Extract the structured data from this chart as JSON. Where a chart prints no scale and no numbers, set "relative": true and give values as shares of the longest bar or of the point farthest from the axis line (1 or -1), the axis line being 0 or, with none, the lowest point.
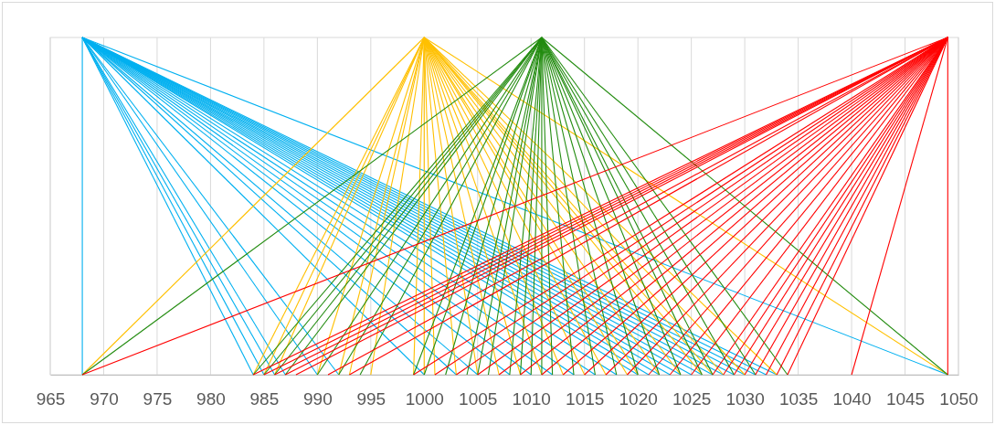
{
  "chart_data": {
    "type": "line",
    "relative": true,
    "xlim": [
      965,
      1050
    ],
    "xticks": [
      965,
      970,
      975,
      980,
      985,
      990,
      995,
      1000,
      1005,
      1010,
      1015,
      1020,
      1025,
      1030,
      1035,
      1040,
      1045,
      1050
    ],
    "grid": "x",
    "tick_labels": "x",
    "line_style": "solid",
    "marker": "none",
    "series": [
      {
        "color": "#00b0f0",
        "x": [
          968,
          968
        ],
        "values": [
          1,
          0
        ]
      },
      {
        "color": "#00b0f0",
        "x": [
          968,
          984
        ],
        "values": [
          1,
          0
        ]
      },
      {
        "color": "#00b0f0",
        "x": [
          968,
          985
        ],
        "values": [
          1,
          0
        ]
      },
      {
        "color": "#00b0f0",
        "x": [
          968,
          986
        ],
        "values": [
          1,
          0
        ]
      },
      {
        "color": "#00b0f0",
        "x": [
          968,
          987
        ],
        "values": [
          1,
          0
        ]
      },
      {
        "color": "#00b0f0",
        "x": [
          968,
          990
        ],
        "values": [
          1,
          0
        ]
      },
      {
        "color": "#00b0f0",
        "x": [
          968,
          992
        ],
        "values": [
          1,
          0
        ]
      },
      {
        "color": "#00b0f0",
        "x": [
          968,
          1000
        ],
        "values": [
          1,
          0
        ]
      },
      {
        "color": "#00b0f0",
        "x": [
          968,
          1003
        ],
        "values": [
          1,
          0
        ]
      },
      {
        "color": "#00b0f0",
        "x": [
          968,
          1005
        ],
        "values": [
          1,
          0
        ]
      },
      {
        "color": "#00b0f0",
        "x": [
          968,
          1008
        ],
        "values": [
          1,
          0
        ]
      },
      {
        "color": "#00b0f0",
        "x": [
          968,
          1010
        ],
        "values": [
          1,
          0
        ]
      },
      {
        "color": "#00b0f0",
        "x": [
          968,
          1012
        ],
        "values": [
          1,
          0
        ]
      },
      {
        "color": "#00b0f0",
        "x": [
          968,
          1014
        ],
        "values": [
          1,
          0
        ]
      },
      {
        "color": "#00b0f0",
        "x": [
          968,
          1016
        ],
        "values": [
          1,
          0
        ]
      },
      {
        "color": "#00b0f0",
        "x": [
          968,
          1018
        ],
        "values": [
          1,
          0
        ]
      },
      {
        "color": "#00b0f0",
        "x": [
          968,
          1020
        ],
        "values": [
          1,
          0
        ]
      },
      {
        "color": "#00b0f0",
        "x": [
          968,
          1021
        ],
        "values": [
          1,
          0
        ]
      },
      {
        "color": "#00b0f0",
        "x": [
          968,
          1022
        ],
        "values": [
          1,
          0
        ]
      },
      {
        "color": "#00b0f0",
        "x": [
          968,
          1023
        ],
        "values": [
          1,
          0
        ]
      },
      {
        "color": "#00b0f0",
        "x": [
          968,
          1024
        ],
        "values": [
          1,
          0
        ]
      },
      {
        "color": "#00b0f0",
        "x": [
          968,
          1025
        ],
        "values": [
          1,
          0
        ]
      },
      {
        "color": "#00b0f0",
        "x": [
          968,
          1026
        ],
        "values": [
          1,
          0
        ]
      },
      {
        "color": "#00b0f0",
        "x": [
          968,
          1027
        ],
        "values": [
          1,
          0
        ]
      },
      {
        "color": "#00b0f0",
        "x": [
          968,
          1028
        ],
        "values": [
          1,
          0
        ]
      },
      {
        "color": "#00b0f0",
        "x": [
          968,
          1029
        ],
        "values": [
          1,
          0
        ]
      },
      {
        "color": "#00b0f0",
        "x": [
          968,
          1030
        ],
        "values": [
          1,
          0
        ]
      },
      {
        "color": "#00b0f0",
        "x": [
          968,
          1031
        ],
        "values": [
          1,
          0
        ]
      },
      {
        "color": "#00b0f0",
        "x": [
          968,
          1032
        ],
        "values": [
          1,
          0
        ]
      },
      {
        "color": "#00b0f0",
        "x": [
          968,
          1033
        ],
        "values": [
          1,
          0
        ]
      },
      {
        "color": "#00b0f0",
        "x": [
          968,
          1049
        ],
        "values": [
          1,
          0
        ]
      },
      {
        "color": "#ffc000",
        "x": [
          1000,
          968
        ],
        "values": [
          1,
          0
        ]
      },
      {
        "color": "#ffc000",
        "x": [
          1000,
          984
        ],
        "values": [
          1,
          0
        ]
      },
      {
        "color": "#ffc000",
        "x": [
          1000,
          985
        ],
        "values": [
          1,
          0
        ]
      },
      {
        "color": "#ffc000",
        "x": [
          1000,
          986
        ],
        "values": [
          1,
          0
        ]
      },
      {
        "color": "#ffc000",
        "x": [
          1000,
          990
        ],
        "values": [
          1,
          0
        ]
      },
      {
        "color": "#ffc000",
        "x": [
          1000,
          992
        ],
        "values": [
          1,
          0
        ]
      },
      {
        "color": "#ffc000",
        "x": [
          1000,
          993
        ],
        "values": [
          1,
          0
        ]
      },
      {
        "color": "#ffc000",
        "x": [
          1000,
          995
        ],
        "values": [
          1,
          0
        ]
      },
      {
        "color": "#ffc000",
        "x": [
          1000,
          999
        ],
        "values": [
          1,
          0
        ]
      },
      {
        "color": "#ffc000",
        "x": [
          1000,
          1000
        ],
        "values": [
          1,
          0
        ]
      },
      {
        "color": "#ffc000",
        "x": [
          1000,
          1001
        ],
        "values": [
          1,
          0
        ]
      },
      {
        "color": "#ffc000",
        "x": [
          1000,
          1003
        ],
        "values": [
          1,
          0
        ]
      },
      {
        "color": "#ffc000",
        "x": [
          1000,
          1005
        ],
        "values": [
          1,
          0
        ]
      },
      {
        "color": "#ffc000",
        "x": [
          1000,
          1007
        ],
        "values": [
          1,
          0
        ]
      },
      {
        "color": "#ffc000",
        "x": [
          1000,
          1009
        ],
        "values": [
          1,
          0
        ]
      },
      {
        "color": "#ffc000",
        "x": [
          1000,
          1011
        ],
        "values": [
          1,
          0
        ]
      },
      {
        "color": "#ffc000",
        "x": [
          1000,
          1013
        ],
        "values": [
          1,
          0
        ]
      },
      {
        "color": "#ffc000",
        "x": [
          1000,
          1015
        ],
        "values": [
          1,
          0
        ]
      },
      {
        "color": "#ffc000",
        "x": [
          1000,
          1017
        ],
        "values": [
          1,
          0
        ]
      },
      {
        "color": "#ffc000",
        "x": [
          1000,
          1019
        ],
        "values": [
          1,
          0
        ]
      },
      {
        "color": "#ffc000",
        "x": [
          1000,
          1020
        ],
        "values": [
          1,
          0
        ]
      },
      {
        "color": "#ffc000",
        "x": [
          1000,
          1022
        ],
        "values": [
          1,
          0
        ]
      },
      {
        "color": "#ffc000",
        "x": [
          1000,
          1024
        ],
        "values": [
          1,
          0
        ]
      },
      {
        "color": "#ffc000",
        "x": [
          1000,
          1026
        ],
        "values": [
          1,
          0
        ]
      },
      {
        "color": "#ffc000",
        "x": [
          1000,
          1027
        ],
        "values": [
          1,
          0
        ]
      },
      {
        "color": "#ffc000",
        "x": [
          1000,
          1028
        ],
        "values": [
          1,
          0
        ]
      },
      {
        "color": "#ffc000",
        "x": [
          1000,
          1030
        ],
        "values": [
          1,
          0
        ]
      },
      {
        "color": "#ffc000",
        "x": [
          1000,
          1033
        ],
        "values": [
          1,
          0
        ]
      },
      {
        "color": "#ffc000",
        "x": [
          1000,
          1049
        ],
        "values": [
          1,
          0
        ]
      },
      {
        "color": "#238c10",
        "x": [
          1011,
          968
        ],
        "values": [
          1,
          0
        ]
      },
      {
        "color": "#238c10",
        "x": [
          1011,
          984
        ],
        "values": [
          1,
          0
        ]
      },
      {
        "color": "#238c10",
        "x": [
          1011,
          985
        ],
        "values": [
          1,
          0
        ]
      },
      {
        "color": "#238c10",
        "x": [
          1011,
          986
        ],
        "values": [
          1,
          0
        ]
      },
      {
        "color": "#238c10",
        "x": [
          1011,
          987
        ],
        "values": [
          1,
          0
        ]
      },
      {
        "color": "#238c10",
        "x": [
          1011,
          990
        ],
        "values": [
          1,
          0
        ]
      },
      {
        "color": "#238c10",
        "x": [
          1011,
          992
        ],
        "values": [
          1,
          0
        ]
      },
      {
        "color": "#238c10",
        "x": [
          1011,
          994
        ],
        "values": [
          1,
          0
        ]
      },
      {
        "color": "#238c10",
        "x": [
          1011,
          999
        ],
        "values": [
          1,
          0
        ]
      },
      {
        "color": "#238c10",
        "x": [
          1011,
          1000
        ],
        "values": [
          1,
          0
        ]
      },
      {
        "color": "#238c10",
        "x": [
          1011,
          1002
        ],
        "values": [
          1,
          0
        ]
      },
      {
        "color": "#238c10",
        "x": [
          1011,
          1004
        ],
        "values": [
          1,
          0
        ]
      },
      {
        "color": "#238c10",
        "x": [
          1011,
          1005
        ],
        "values": [
          1,
          0
        ]
      },
      {
        "color": "#238c10",
        "x": [
          1011,
          1006
        ],
        "values": [
          1,
          0
        ]
      },
      {
        "color": "#238c10",
        "x": [
          1011,
          1008
        ],
        "values": [
          1,
          0
        ]
      },
      {
        "color": "#238c10",
        "x": [
          1011,
          1009
        ],
        "values": [
          1,
          0
        ]
      },
      {
        "color": "#238c10",
        "x": [
          1011,
          1010
        ],
        "values": [
          1,
          0
        ]
      },
      {
        "color": "#238c10",
        "x": [
          1011,
          1011
        ],
        "values": [
          1,
          0
        ]
      },
      {
        "color": "#238c10",
        "x": [
          1011,
          1012
        ],
        "values": [
          1,
          0
        ]
      },
      {
        "color": "#238c10",
        "x": [
          1011,
          1014
        ],
        "values": [
          1,
          0
        ]
      },
      {
        "color": "#238c10",
        "x": [
          1011,
          1016
        ],
        "values": [
          1,
          0
        ]
      },
      {
        "color": "#238c10",
        "x": [
          1011,
          1018
        ],
        "values": [
          1,
          0
        ]
      },
      {
        "color": "#238c10",
        "x": [
          1011,
          1020
        ],
        "values": [
          1,
          0
        ]
      },
      {
        "color": "#238c10",
        "x": [
          1011,
          1022
        ],
        "values": [
          1,
          0
        ]
      },
      {
        "color": "#238c10",
        "x": [
          1011,
          1024
        ],
        "values": [
          1,
          0
        ]
      },
      {
        "color": "#238c10",
        "x": [
          1011,
          1026
        ],
        "values": [
          1,
          0
        ]
      },
      {
        "color": "#238c10",
        "x": [
          1011,
          1027
        ],
        "values": [
          1,
          0
        ]
      },
      {
        "color": "#238c10",
        "x": [
          1011,
          1029
        ],
        "values": [
          1,
          0
        ]
      },
      {
        "color": "#238c10",
        "x": [
          1011,
          1031
        ],
        "values": [
          1,
          0
        ]
      },
      {
        "color": "#238c10",
        "x": [
          1011,
          1034
        ],
        "values": [
          1,
          0
        ]
      },
      {
        "color": "#238c10",
        "x": [
          1011,
          1049
        ],
        "values": [
          1,
          0
        ]
      },
      {
        "color": "#ff0000",
        "x": [
          1049,
          968
        ],
        "values": [
          1,
          0
        ]
      },
      {
        "color": "#ff0000",
        "x": [
          1049,
          984
        ],
        "values": [
          1,
          0
        ]
      },
      {
        "color": "#ff0000",
        "x": [
          1049,
          985
        ],
        "values": [
          1,
          0
        ]
      },
      {
        "color": "#ff0000",
        "x": [
          1049,
          986
        ],
        "values": [
          1,
          0
        ]
      },
      {
        "color": "#ff0000",
        "x": [
          1049,
          987
        ],
        "values": [
          1,
          0
        ]
      },
      {
        "color": "#ff0000",
        "x": [
          1049,
          988
        ],
        "values": [
          1,
          0
        ]
      },
      {
        "color": "#ff0000",
        "x": [
          1049,
          991
        ],
        "values": [
          1,
          0
        ]
      },
      {
        "color": "#ff0000",
        "x": [
          1049,
          993
        ],
        "values": [
          1,
          0
        ]
      },
      {
        "color": "#ff0000",
        "x": [
          1049,
          999
        ],
        "values": [
          1,
          0
        ]
      },
      {
        "color": "#ff0000",
        "x": [
          1049,
          1001
        ],
        "values": [
          1,
          0
        ]
      },
      {
        "color": "#ff0000",
        "x": [
          1049,
          1003
        ],
        "values": [
          1,
          0
        ]
      },
      {
        "color": "#ff0000",
        "x": [
          1049,
          1005
        ],
        "values": [
          1,
          0
        ]
      },
      {
        "color": "#ff0000",
        "x": [
          1049,
          1007
        ],
        "values": [
          1,
          0
        ]
      },
      {
        "color": "#ff0000",
        "x": [
          1049,
          1009
        ],
        "values": [
          1,
          0
        ]
      },
      {
        "color": "#ff0000",
        "x": [
          1049,
          1011
        ],
        "values": [
          1,
          0
        ]
      },
      {
        "color": "#ff0000",
        "x": [
          1049,
          1013
        ],
        "values": [
          1,
          0
        ]
      },
      {
        "color": "#ff0000",
        "x": [
          1049,
          1015
        ],
        "values": [
          1,
          0
        ]
      },
      {
        "color": "#ff0000",
        "x": [
          1049,
          1017
        ],
        "values": [
          1,
          0
        ]
      },
      {
        "color": "#ff0000",
        "x": [
          1049,
          1019
        ],
        "values": [
          1,
          0
        ]
      },
      {
        "color": "#ff0000",
        "x": [
          1049,
          1021
        ],
        "values": [
          1,
          0
        ]
      },
      {
        "color": "#ff0000",
        "x": [
          1049,
          1023
        ],
        "values": [
          1,
          0
        ]
      },
      {
        "color": "#ff0000",
        "x": [
          1049,
          1025
        ],
        "values": [
          1,
          0
        ]
      },
      {
        "color": "#ff0000",
        "x": [
          1049,
          1027
        ],
        "values": [
          1,
          0
        ]
      },
      {
        "color": "#ff0000",
        "x": [
          1049,
          1028
        ],
        "values": [
          1,
          0
        ]
      },
      {
        "color": "#ff0000",
        "x": [
          1049,
          1029
        ],
        "values": [
          1,
          0
        ]
      },
      {
        "color": "#ff0000",
        "x": [
          1049,
          1030
        ],
        "values": [
          1,
          0
        ]
      },
      {
        "color": "#ff0000",
        "x": [
          1049,
          1031
        ],
        "values": [
          1,
          0
        ]
      },
      {
        "color": "#ff0000",
        "x": [
          1049,
          1032
        ],
        "values": [
          1,
          0
        ]
      },
      {
        "color": "#ff0000",
        "x": [
          1049,
          1033
        ],
        "values": [
          1,
          0
        ]
      },
      {
        "color": "#ff0000",
        "x": [
          1049,
          1034
        ],
        "values": [
          1,
          0
        ]
      },
      {
        "color": "#ff0000",
        "x": [
          1049,
          1040
        ],
        "values": [
          1,
          0
        ]
      },
      {
        "color": "#ff0000",
        "x": [
          1049,
          1049
        ],
        "values": [
          1,
          0
        ]
      }
    ]
  }
}
